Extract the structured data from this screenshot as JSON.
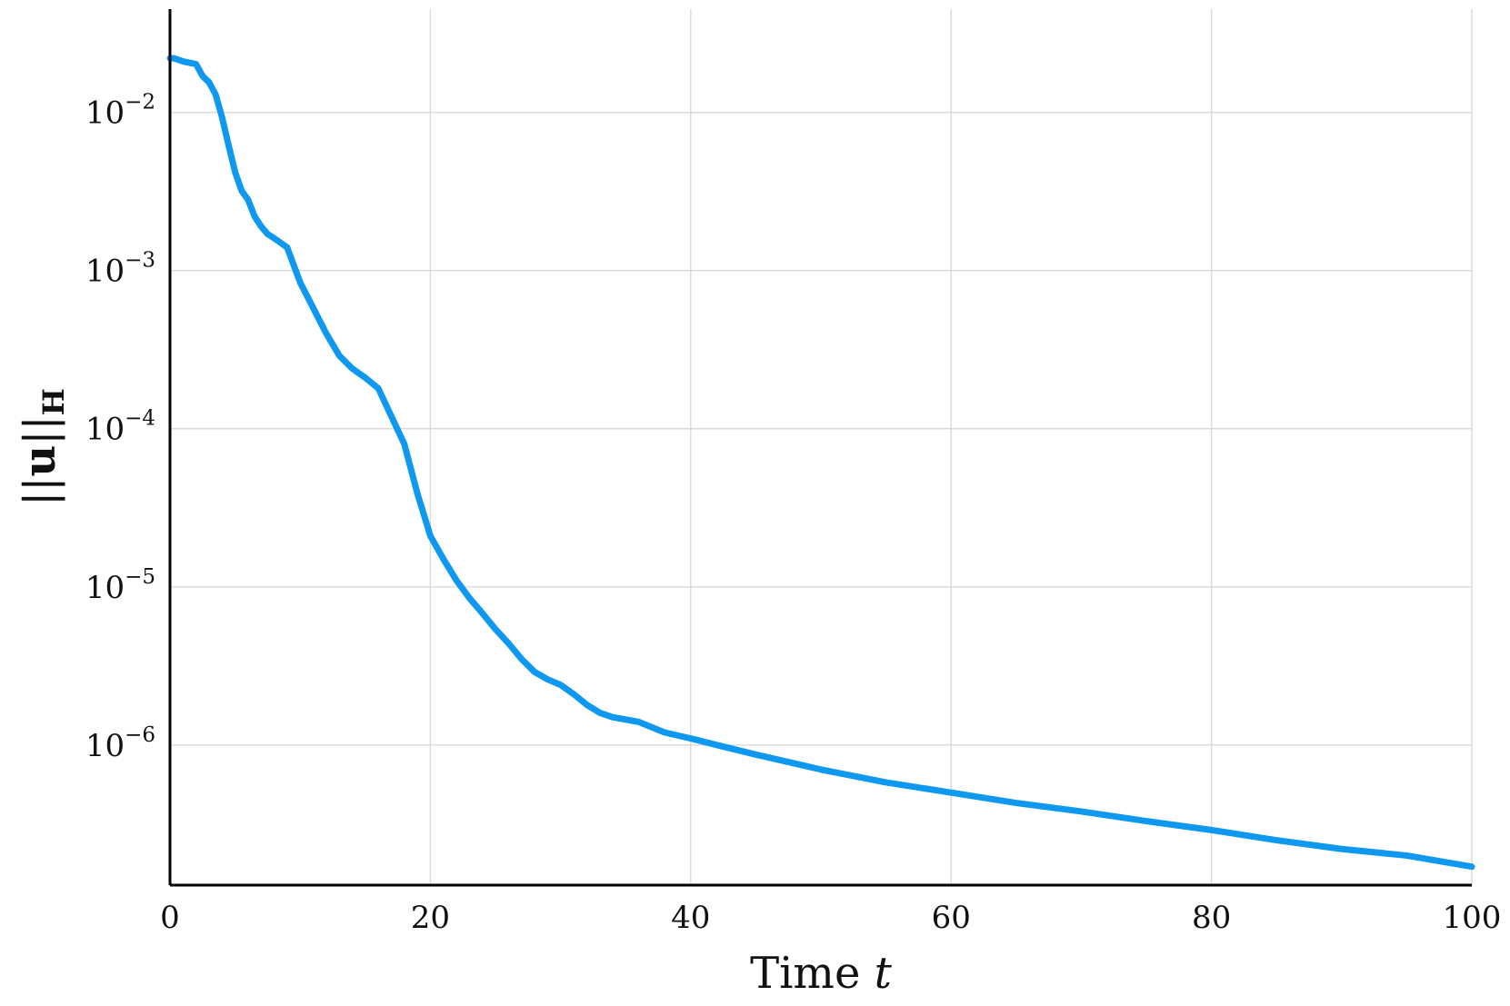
{
  "chart_data": {
    "type": "line",
    "title": "",
    "xlabel": "Time t",
    "ylabel": "||u||H",
    "xlim": [
      0,
      100
    ],
    "ylog": true,
    "ylim": [
      1.3e-07,
      0.045
    ],
    "grid": true,
    "legend": "none",
    "x_ticks": [
      {
        "value": 0,
        "label": "0"
      },
      {
        "value": 20,
        "label": "20"
      },
      {
        "value": 40,
        "label": "40"
      },
      {
        "value": 60,
        "label": "60"
      },
      {
        "value": 80,
        "label": "80"
      },
      {
        "value": 100,
        "label": "100"
      }
    ],
    "y_ticks": [
      {
        "value": 0.01,
        "base": "10",
        "exp": "−2"
      },
      {
        "value": 0.001,
        "base": "10",
        "exp": "−3"
      },
      {
        "value": 0.0001,
        "base": "10",
        "exp": "−4"
      },
      {
        "value": 1e-05,
        "base": "10",
        "exp": "−5"
      },
      {
        "value": 1e-06,
        "base": "10",
        "exp": "−6"
      }
    ],
    "series": [
      {
        "color": "#0f98ef",
        "x": [
          0,
          0.3,
          1,
          2,
          2.5,
          3,
          3.5,
          4,
          4.5,
          5,
          5.5,
          6,
          6.5,
          7,
          7.5,
          8,
          9,
          10,
          11,
          12,
          13,
          14,
          15,
          16,
          17,
          18,
          19,
          20,
          21,
          22,
          23,
          24,
          25,
          26,
          27,
          28,
          29,
          30,
          31,
          32,
          33,
          34,
          36,
          38,
          40,
          42,
          45,
          50,
          55,
          60,
          65,
          70,
          75,
          80,
          85,
          90,
          95,
          100
        ],
        "y": [
          0.022,
          0.022,
          0.021,
          0.0202,
          0.017,
          0.0155,
          0.013,
          0.0093,
          0.0062,
          0.0042,
          0.0032,
          0.0028,
          0.0022,
          0.0019,
          0.0017,
          0.0016,
          0.0014,
          0.00084,
          0.00058,
          0.0004,
          0.00029,
          0.00024,
          0.00021,
          0.00018,
          0.00012,
          8e-05,
          3.9e-05,
          2.1e-05,
          1.5e-05,
          1.1e-05,
          8.5e-06,
          6.8e-06,
          5.4e-06,
          4.4e-06,
          3.5e-06,
          2.9e-06,
          2.6e-06,
          2.4e-06,
          2.1e-06,
          1.8e-06,
          1.6e-06,
          1.5e-06,
          1.4e-06,
          1.2e-06,
          1.1e-06,
          1e-06,
          8.7e-07,
          7e-07,
          5.8e-07,
          5e-07,
          4.3e-07,
          3.8e-07,
          3.3e-07,
          2.9e-07,
          2.5e-07,
          2.2e-07,
          2e-07,
          1.7e-07
        ]
      }
    ]
  }
}
